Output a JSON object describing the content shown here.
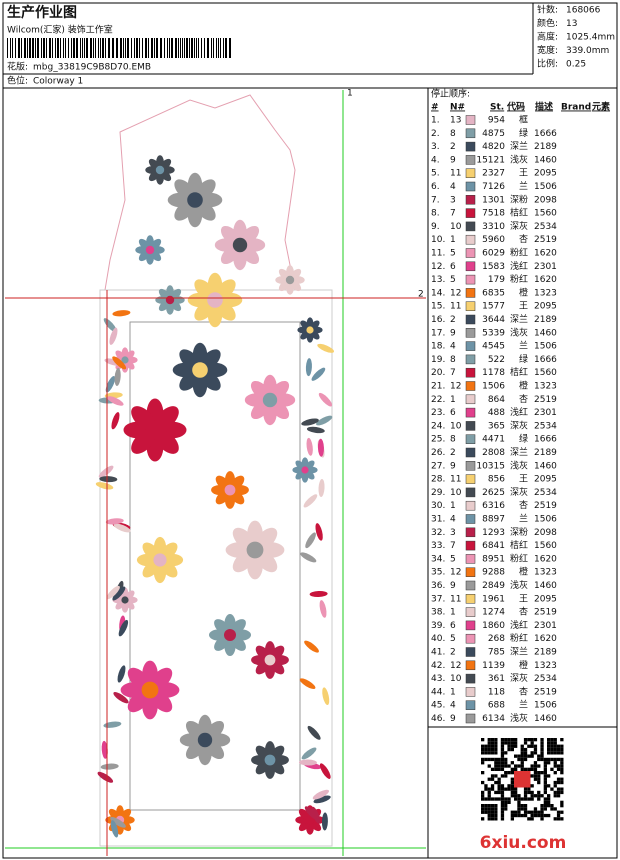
{
  "header": {
    "title": "生产作业图",
    "studio": "Wilcom(汇家) 装饰工作室",
    "design_label": "花版:",
    "design_file": "mbg_33819C9B8D70.EMB",
    "colorway_label": "色位:",
    "colorway": "Colorway 1"
  },
  "stats": [
    {
      "label": "针数:",
      "value": "168066"
    },
    {
      "label": "颜色:",
      "value": "13"
    },
    {
      "label": "高度:",
      "value": "1025.4mm"
    },
    {
      "label": "宽度:",
      "value": "339.0mm"
    },
    {
      "label": "比例:",
      "value": "0.25"
    }
  ],
  "guides": {
    "vertical": "1",
    "horizontal": "2"
  },
  "table": {
    "title": "停止顺序:",
    "header": [
      "#",
      "N#",
      "St.",
      "代码",
      "描述",
      "Brand",
      "元素"
    ],
    "rows": [
      {
        "no": "1.",
        "needle": 13,
        "color": "#e4b4c4",
        "stitches": 954,
        "desc": "框"
      },
      {
        "no": "2.",
        "needle": 8,
        "color": "#7f9ea6",
        "stitches": 4875,
        "desc": "绿",
        "code": 1666
      },
      {
        "no": "3.",
        "needle": 2,
        "color": "#3b4a5c",
        "stitches": 4820,
        "desc": "深兰",
        "code": 2189
      },
      {
        "no": "4.",
        "needle": 9,
        "color": "#9a9a9a",
        "stitches": 15121,
        "desc": "浅灰",
        "code": 1460
      },
      {
        "no": "5.",
        "needle": 11,
        "color": "#f6d070",
        "stitches": 2327,
        "desc": "王",
        "code": 2095
      },
      {
        "no": "6.",
        "needle": 4,
        "color": "#6d93a6",
        "stitches": 7126,
        "desc": "兰",
        "code": 1506
      },
      {
        "no": "7.",
        "needle": 3,
        "color": "#b8204a",
        "stitches": 1301,
        "desc": "深粉",
        "code": 2098
      },
      {
        "no": "8.",
        "needle": 7,
        "color": "#c8143c",
        "stitches": 7518,
        "desc": "桔红",
        "code": 1560
      },
      {
        "no": "9.",
        "needle": 10,
        "color": "#434a52",
        "stitches": 3310,
        "desc": "深灰",
        "code": 2534
      },
      {
        "no": "10.",
        "needle": 1,
        "color": "#e8cccc",
        "stitches": 5960,
        "desc": "杏",
        "code": 2519
      },
      {
        "no": "11.",
        "needle": 5,
        "color": "#ec94b4",
        "stitches": 6029,
        "desc": "粉红",
        "code": 1620
      },
      {
        "no": "12.",
        "needle": 6,
        "color": "#e0408c",
        "stitches": 1583,
        "desc": "浅红",
        "code": 2301
      },
      {
        "no": "13.",
        "needle": 5,
        "color": "#ec94b4",
        "stitches": 179,
        "desc": "粉红",
        "code": 1620
      },
      {
        "no": "14.",
        "needle": 12,
        "color": "#f27412",
        "stitches": 6835,
        "desc": "橙",
        "code": 1323
      },
      {
        "no": "15.",
        "needle": 11,
        "color": "#f6d070",
        "stitches": 1577,
        "desc": "王",
        "code": 2095
      },
      {
        "no": "16.",
        "needle": 2,
        "color": "#3b4a5c",
        "stitches": 3644,
        "desc": "深兰",
        "code": 2189
      },
      {
        "no": "17.",
        "needle": 9,
        "color": "#9a9a9a",
        "stitches": 5339,
        "desc": "浅灰",
        "code": 1460
      },
      {
        "no": "18.",
        "needle": 4,
        "color": "#6d93a6",
        "stitches": 4545,
        "desc": "兰",
        "code": 1506
      },
      {
        "no": "19.",
        "needle": 8,
        "color": "#7f9ea6",
        "stitches": 522,
        "desc": "绿",
        "code": 1666
      },
      {
        "no": "20.",
        "needle": 7,
        "color": "#c8143c",
        "stitches": 1178,
        "desc": "桔红",
        "code": 1560
      },
      {
        "no": "21.",
        "needle": 12,
        "color": "#f27412",
        "stitches": 1506,
        "desc": "橙",
        "code": 1323
      },
      {
        "no": "22.",
        "needle": 1,
        "color": "#e8cccc",
        "stitches": 864,
        "desc": "杏",
        "code": 2519
      },
      {
        "no": "23.",
        "needle": 6,
        "color": "#e0408c",
        "stitches": 488,
        "desc": "浅红",
        "code": 2301
      },
      {
        "no": "24.",
        "needle": 10,
        "color": "#434a52",
        "stitches": 365,
        "desc": "深灰",
        "code": 2534
      },
      {
        "no": "25.",
        "needle": 8,
        "color": "#7f9ea6",
        "stitches": 4471,
        "desc": "绿",
        "code": 1666
      },
      {
        "no": "26.",
        "needle": 2,
        "color": "#3b4a5c",
        "stitches": 2808,
        "desc": "深兰",
        "code": 2189
      },
      {
        "no": "27.",
        "needle": 9,
        "color": "#9a9a9a",
        "stitches": 10315,
        "desc": "浅灰",
        "code": 1460
      },
      {
        "no": "28.",
        "needle": 11,
        "color": "#f6d070",
        "stitches": 856,
        "desc": "王",
        "code": 2095
      },
      {
        "no": "29.",
        "needle": 10,
        "color": "#434a52",
        "stitches": 2625,
        "desc": "深灰",
        "code": 2534
      },
      {
        "no": "30.",
        "needle": 1,
        "color": "#e8cccc",
        "stitches": 6316,
        "desc": "杏",
        "code": 2519
      },
      {
        "no": "31.",
        "needle": 4,
        "color": "#6d93a6",
        "stitches": 8897,
        "desc": "兰",
        "code": 1506
      },
      {
        "no": "32.",
        "needle": 3,
        "color": "#b8204a",
        "stitches": 1293,
        "desc": "深粉",
        "code": 2098
      },
      {
        "no": "33.",
        "needle": 7,
        "color": "#c8143c",
        "stitches": 6841,
        "desc": "桔红",
        "code": 1560
      },
      {
        "no": "34.",
        "needle": 5,
        "color": "#ec94b4",
        "stitches": 8951,
        "desc": "粉红",
        "code": 1620
      },
      {
        "no": "35.",
        "needle": 12,
        "color": "#f27412",
        "stitches": 9288,
        "desc": "橙",
        "code": 1323
      },
      {
        "no": "36.",
        "needle": 9,
        "color": "#9a9a9a",
        "stitches": 2849,
        "desc": "浅灰",
        "code": 1460
      },
      {
        "no": "37.",
        "needle": 11,
        "color": "#f6d070",
        "stitches": 1961,
        "desc": "王",
        "code": 2095
      },
      {
        "no": "38.",
        "needle": 1,
        "color": "#e8cccc",
        "stitches": 1274,
        "desc": "杏",
        "code": 2519
      },
      {
        "no": "39.",
        "needle": 6,
        "color": "#e0408c",
        "stitches": 1860,
        "desc": "浅红",
        "code": 2301
      },
      {
        "no": "40.",
        "needle": 5,
        "color": "#ec94b4",
        "stitches": 268,
        "desc": "粉红",
        "code": 1620
      },
      {
        "no": "41.",
        "needle": 2,
        "color": "#3b4a5c",
        "stitches": 785,
        "desc": "深兰",
        "code": 2189
      },
      {
        "no": "42.",
        "needle": 12,
        "color": "#f27412",
        "stitches": 1139,
        "desc": "橙",
        "code": 1323
      },
      {
        "no": "43.",
        "needle": 10,
        "color": "#434a52",
        "stitches": 361,
        "desc": "深灰",
        "code": 2534
      },
      {
        "no": "44.",
        "needle": 1,
        "color": "#e8cccc",
        "stitches": 118,
        "desc": "杏",
        "code": 2519
      },
      {
        "no": "45.",
        "needle": 4,
        "color": "#6d93a6",
        "stitches": 688,
        "desc": "兰",
        "code": 1506
      },
      {
        "no": "46.",
        "needle": 9,
        "color": "#9a9a9a",
        "stitches": 6134,
        "desc": "浅灰",
        "code": 1460
      }
    ]
  },
  "watermark": "6xiu.com"
}
